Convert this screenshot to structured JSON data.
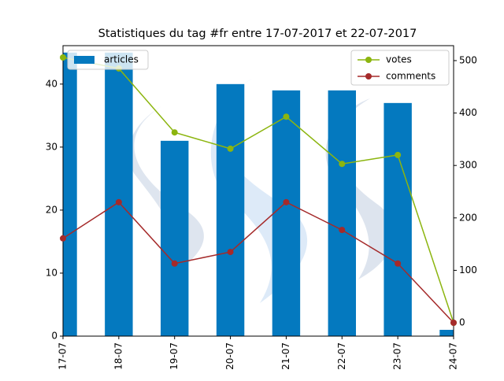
{
  "chart_data": {
    "type": "bar_line",
    "title": "Statistiques du tag #fr entre 17-07-2017 et 22-07-2017",
    "categories": [
      "17-07",
      "18-07",
      "19-07",
      "20-07",
      "21-07",
      "22-07",
      "23-07",
      "24-07"
    ],
    "series": [
      {
        "name": "articles",
        "color": "#0479bf",
        "type": "bar",
        "values": [
          45,
          45,
          31,
          40,
          39,
          39,
          37,
          1
        ]
      },
      {
        "name": "votes",
        "color": "#8cb50f",
        "type": "line",
        "axis": "y2",
        "values": [
          506,
          485,
          363,
          332,
          393,
          303,
          320,
          0
        ]
      },
      {
        "name": "comments",
        "color": "#a52a2a",
        "type": "line",
        "axis": "y2",
        "values": [
          161,
          230,
          113,
          135,
          230,
          177,
          113,
          0
        ]
      }
    ],
    "ylim": [
      0,
      46.1
    ],
    "yticks": [
      0,
      10,
      20,
      30,
      40
    ],
    "y2lim": [
      -25.5,
      528.5
    ],
    "y2ticks": [
      0,
      100,
      200,
      300,
      400,
      500
    ],
    "legend": "upper left",
    "legend2": "upper right"
  }
}
